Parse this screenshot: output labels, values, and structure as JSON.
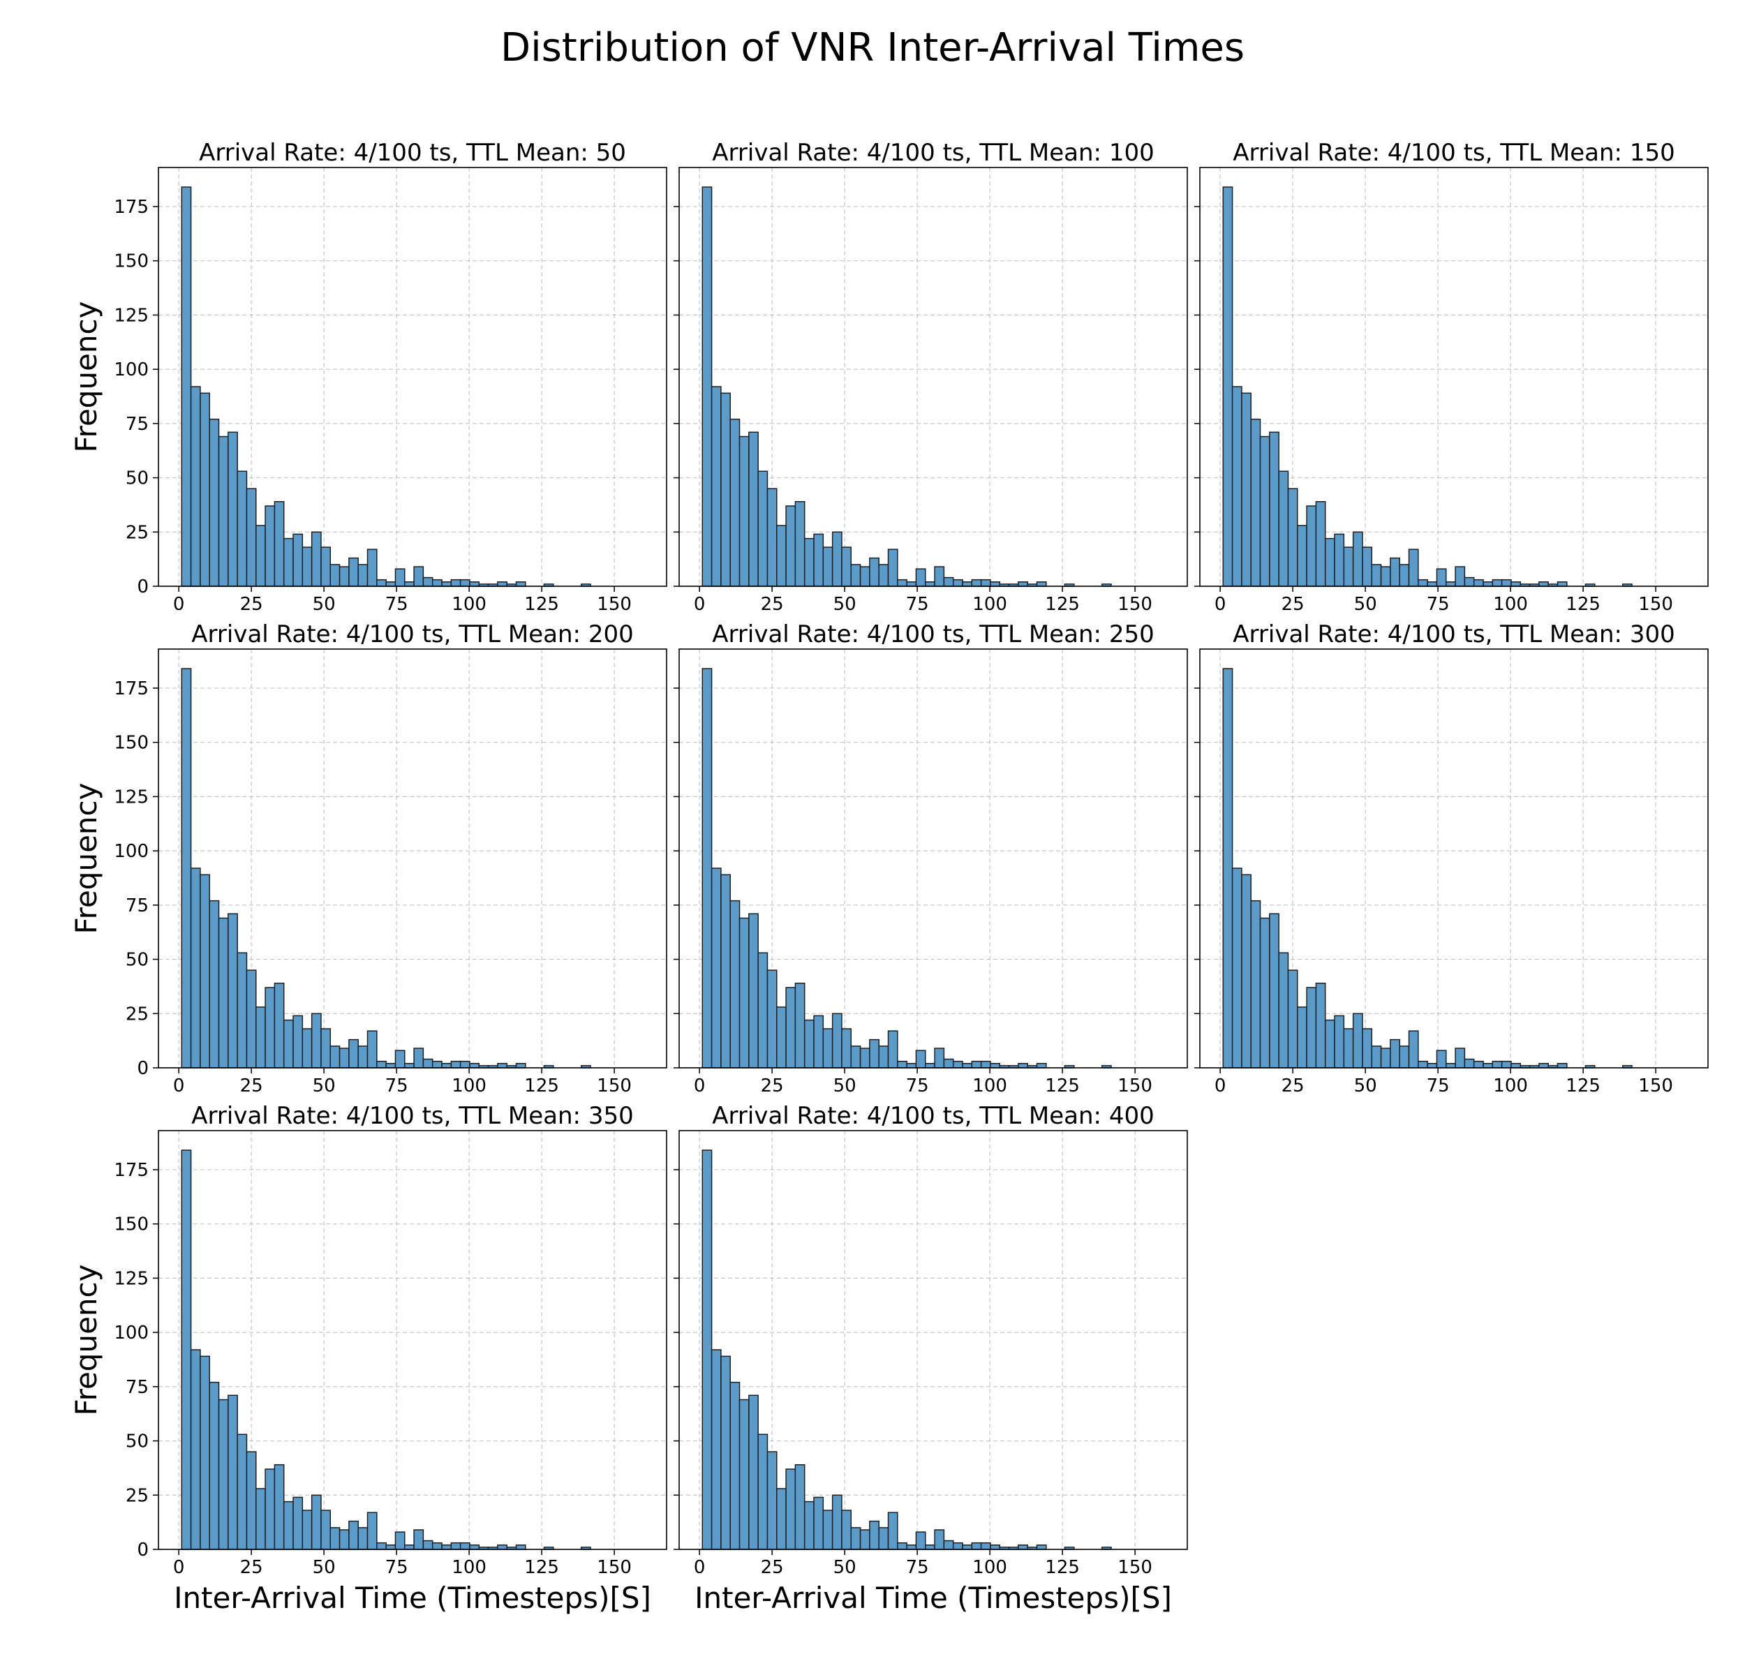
{
  "figure": {
    "suptitle": "Distribution of VNR Inter-Arrival Times"
  },
  "chart_data": {
    "type": "bar",
    "layout": "3x3 grid of histograms (8 panels, last cell empty)",
    "bar_color": "#5b9bc9",
    "edge_color": "#1f1f1f",
    "grid": true,
    "xlim": [
      -7,
      168
    ],
    "ylim": [
      0,
      193
    ],
    "xticks": [
      0,
      25,
      50,
      75,
      100,
      125,
      150
    ],
    "yticks": [
      0,
      25,
      50,
      75,
      100,
      125,
      150,
      175
    ],
    "bin_start": 1,
    "bin_width": 3.2,
    "counts": [
      184,
      92,
      89,
      77,
      69,
      71,
      53,
      45,
      28,
      37,
      39,
      22,
      24,
      18,
      25,
      18,
      10,
      9,
      13,
      10,
      17,
      3,
      2,
      8,
      2,
      9,
      4,
      3,
      2,
      3,
      3,
      2,
      1,
      1,
      2,
      1,
      2,
      0,
      0,
      1,
      0,
      0,
      0,
      1,
      0,
      0,
      0,
      0,
      0,
      0
    ],
    "ylabel": "Frequency",
    "xlabel": "Inter-Arrival Time (Timesteps)[S]",
    "panels": [
      {
        "title": "Arrival Rate: 4/100 ts, TTL Mean: 50",
        "show_ylabel": true,
        "show_xlabel": false
      },
      {
        "title": "Arrival Rate: 4/100 ts, TTL Mean: 100",
        "show_ylabel": false,
        "show_xlabel": false
      },
      {
        "title": "Arrival Rate: 4/100 ts, TTL Mean: 150",
        "show_ylabel": false,
        "show_xlabel": false
      },
      {
        "title": "Arrival Rate: 4/100 ts, TTL Mean: 200",
        "show_ylabel": true,
        "show_xlabel": false
      },
      {
        "title": "Arrival Rate: 4/100 ts, TTL Mean: 250",
        "show_ylabel": false,
        "show_xlabel": false
      },
      {
        "title": "Arrival Rate: 4/100 ts, TTL Mean: 300",
        "show_ylabel": false,
        "show_xlabel": false
      },
      {
        "title": "Arrival Rate: 4/100 ts, TTL Mean: 350",
        "show_ylabel": true,
        "show_xlabel": true
      },
      {
        "title": "Arrival Rate: 4/100 ts, TTL Mean: 400",
        "show_ylabel": false,
        "show_xlabel": true
      }
    ]
  }
}
